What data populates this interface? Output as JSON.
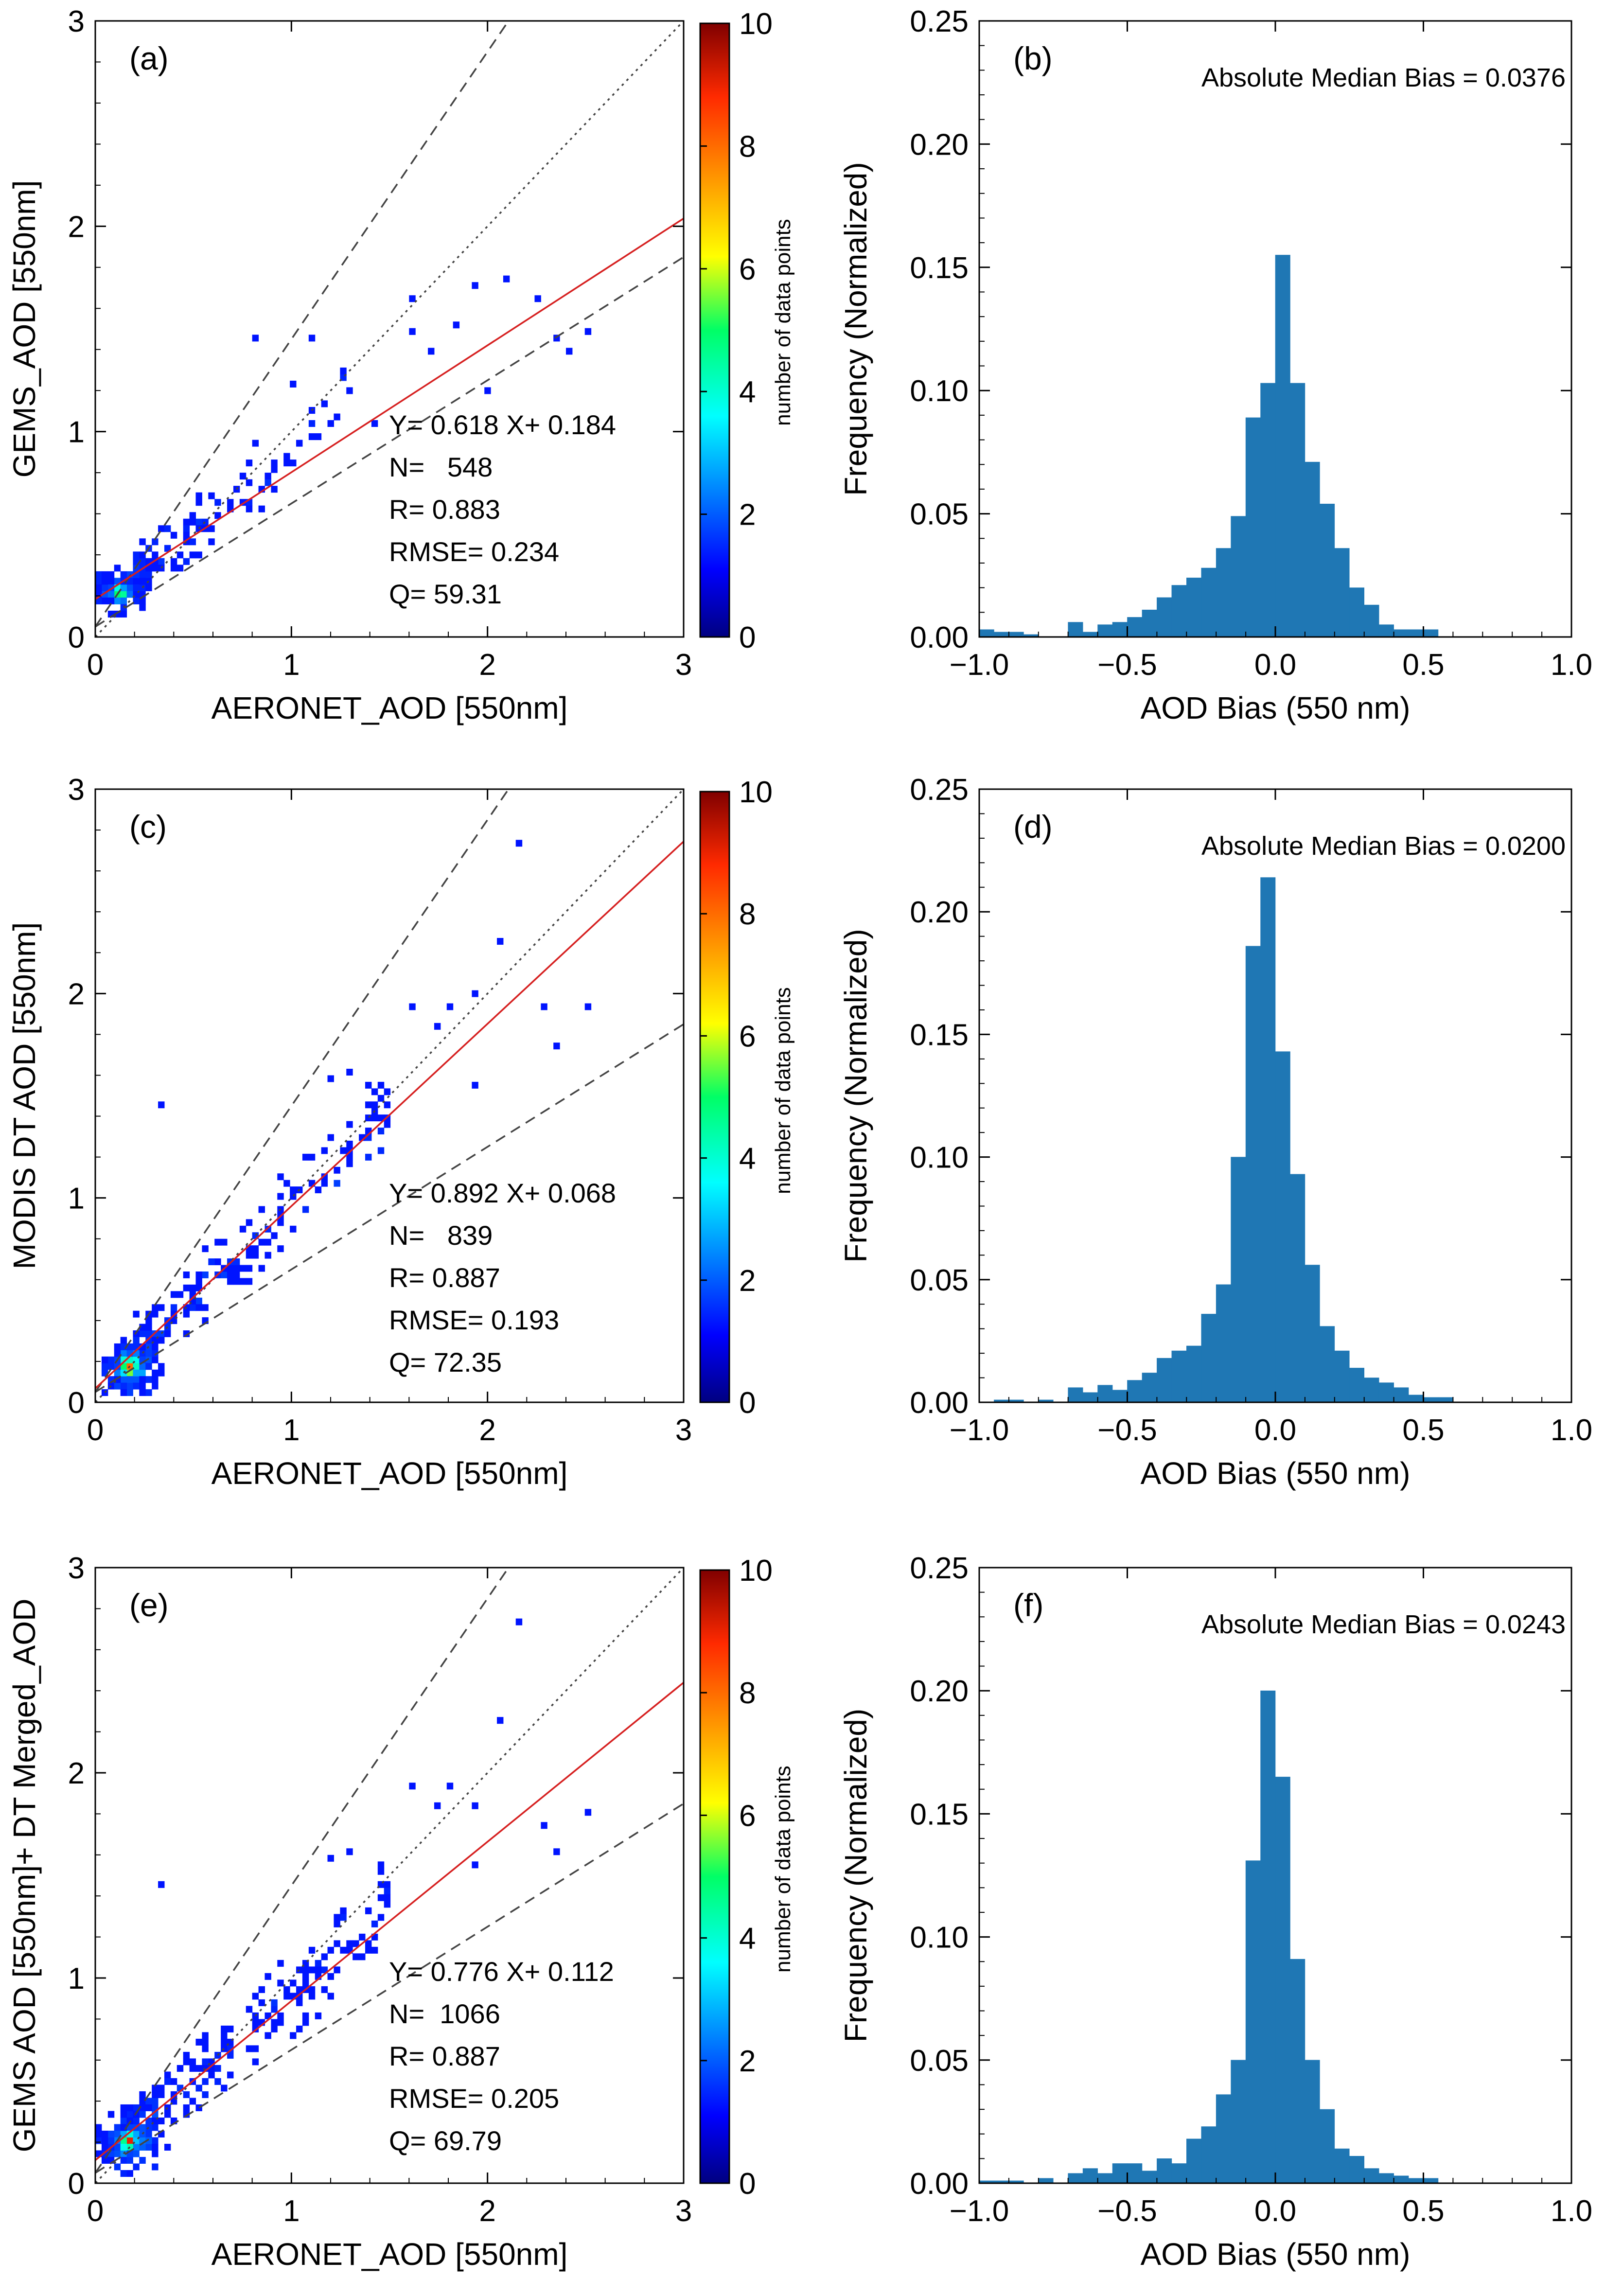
{
  "chart_data": [
    {
      "type": "heatmap",
      "panel_label": "(a)",
      "title": "",
      "xlabel": "AERONET_AOD [550nm]",
      "ylabel": "GEMS_AOD [550nm]",
      "xlim": [
        0,
        3
      ],
      "ylim": [
        0,
        3
      ],
      "xticks": [
        "0",
        "1",
        "2",
        "3"
      ],
      "yticks": [
        "0",
        "1",
        "2",
        "3"
      ],
      "reference_lines": {
        "one_to_one": [
          0,
          3
        ],
        "envelope_upper": "1.4x + 0.05",
        "envelope_lower": "0.6x + 0.05"
      },
      "fit": {
        "slope": 0.618,
        "intercept": 0.184
      },
      "stats": [
        "Y= 0.618 X+ 0.184",
        "N=   548",
        "R= 0.883",
        "RMSE= 0.234",
        "Q= 59.31"
      ],
      "colorbar": {
        "label": "number of data points",
        "range": [
          0,
          10
        ],
        "ticks": [
          "0",
          "2",
          "4",
          "6",
          "8",
          "10"
        ]
      },
      "density_cluster": {
        "center": [
          0.12,
          0.22
        ],
        "spread": 0.09,
        "count": 150,
        "peak": 5
      },
      "tail": {
        "count": 110,
        "x_range": [
          0.2,
          1.3
        ],
        "slope": 0.75,
        "offset": 0.15,
        "noise": 0.2
      },
      "outliers": [
        [
          1.1,
          1.45
        ],
        [
          1.28,
          1.2
        ],
        [
          1.42,
          1.05
        ],
        [
          1.6,
          1.65
        ],
        [
          1.62,
          1.5
        ],
        [
          1.7,
          1.4
        ],
        [
          1.85,
          1.52
        ],
        [
          1.95,
          1.7
        ],
        [
          2.0,
          1.2
        ],
        [
          2.08,
          1.75
        ],
        [
          2.25,
          1.65
        ],
        [
          2.35,
          1.45
        ],
        [
          2.42,
          1.38
        ],
        [
          2.52,
          1.5
        ],
        [
          0.8,
          1.44
        ],
        [
          1.0,
          1.22
        ]
      ]
    },
    {
      "type": "bar",
      "panel_label": "(b)",
      "title": "",
      "xlabel": "AOD Bias (550 nm)",
      "ylabel": "Frequency (Normalized)",
      "xlim": [
        -1.0,
        1.0
      ],
      "ylim": [
        0,
        0.25
      ],
      "xticks": [
        "−1.0",
        "−0.5",
        "0.0",
        "0.5",
        "1.0"
      ],
      "yticks": [
        "0.00",
        "0.05",
        "0.10",
        "0.15",
        "0.20",
        "0.25"
      ],
      "annotation": "Absolute Median Bias = 0.0376",
      "bin_start": -1.0,
      "bin_width": 0.05,
      "values": [
        0.003,
        0.002,
        0.002,
        0.001,
        0.0,
        0.0,
        0.006,
        0.002,
        0.005,
        0.006,
        0.008,
        0.011,
        0.016,
        0.021,
        0.024,
        0.028,
        0.036,
        0.049,
        0.089,
        0.103,
        0.155,
        0.103,
        0.071,
        0.054,
        0.036,
        0.02,
        0.013,
        0.005,
        0.003,
        0.003,
        0.003,
        0.0,
        0.0,
        0.0,
        0.0,
        0.0,
        0.0,
        0.0,
        0.0,
        0.0
      ],
      "color": "#1f77b4"
    },
    {
      "type": "heatmap",
      "panel_label": "(c)",
      "title": "",
      "xlabel": "AERONET_AOD [550nm]",
      "ylabel": "MODIS DT AOD [550nm]",
      "xlim": [
        0,
        3
      ],
      "ylim": [
        0,
        3
      ],
      "xticks": [
        "0",
        "1",
        "2",
        "3"
      ],
      "yticks": [
        "0",
        "1",
        "2",
        "3"
      ],
      "reference_lines": {
        "one_to_one": [
          0,
          3
        ],
        "envelope_upper": "1.4x + 0.05",
        "envelope_lower": "0.6x + 0.05"
      },
      "fit": {
        "slope": 0.892,
        "intercept": 0.068
      },
      "stats": [
        "Y= 0.892 X+ 0.068",
        "N=   839",
        "R= 0.887",
        "RMSE= 0.193",
        "Q= 72.35"
      ],
      "colorbar": {
        "label": "number of data points",
        "range": [
          0,
          10
        ],
        "ticks": [
          "0",
          "2",
          "4",
          "6",
          "8",
          "10"
        ]
      },
      "density_cluster": {
        "center": [
          0.18,
          0.17
        ],
        "spread": 0.1,
        "count": 230,
        "peak": 8
      },
      "tail": {
        "count": 170,
        "x_range": [
          0.2,
          1.5
        ],
        "slope": 0.9,
        "offset": 0.07,
        "noise": 0.22
      },
      "outliers": [
        [
          0.32,
          1.45
        ],
        [
          1.3,
          1.6
        ],
        [
          1.6,
          1.95
        ],
        [
          1.75,
          1.85
        ],
        [
          1.8,
          1.95
        ],
        [
          1.92,
          2.0
        ],
        [
          1.95,
          1.55
        ],
        [
          2.05,
          2.25
        ],
        [
          2.15,
          2.75
        ],
        [
          2.3,
          1.95
        ],
        [
          2.35,
          1.75
        ],
        [
          2.5,
          1.95
        ],
        [
          1.45,
          1.55
        ],
        [
          1.2,
          1.58
        ]
      ]
    },
    {
      "type": "bar",
      "panel_label": "(d)",
      "title": "",
      "xlabel": "AOD Bias (550 nm)",
      "ylabel": "Frequency (Normalized)",
      "xlim": [
        -1.0,
        1.0
      ],
      "ylim": [
        0,
        0.25
      ],
      "xticks": [
        "−1.0",
        "−0.5",
        "0.0",
        "0.5",
        "1.0"
      ],
      "yticks": [
        "0.00",
        "0.05",
        "0.10",
        "0.15",
        "0.20",
        "0.25"
      ],
      "annotation": "Absolute Median Bias = 0.0200",
      "bin_start": -1.0,
      "bin_width": 0.05,
      "values": [
        0.0,
        0.001,
        0.001,
        0.0,
        0.001,
        0.0,
        0.006,
        0.004,
        0.007,
        0.005,
        0.009,
        0.012,
        0.018,
        0.021,
        0.023,
        0.036,
        0.048,
        0.1,
        0.186,
        0.214,
        0.143,
        0.093,
        0.056,
        0.031,
        0.021,
        0.014,
        0.01,
        0.008,
        0.006,
        0.003,
        0.002,
        0.002,
        0.0,
        0.0,
        0.0,
        0.0,
        0.0,
        0.0,
        0.0,
        0.0
      ],
      "color": "#1f77b4"
    },
    {
      "type": "heatmap",
      "panel_label": "(e)",
      "title": "",
      "xlabel": "AERONET_AOD [550nm]",
      "ylabel": "GEMS AOD [550nm]+ DT Merged_AOD",
      "xlim": [
        0,
        3
      ],
      "ylim": [
        0,
        3
      ],
      "xticks": [
        "0",
        "1",
        "2",
        "3"
      ],
      "yticks": [
        "0",
        "1",
        "2",
        "3"
      ],
      "reference_lines": {
        "one_to_one": [
          0,
          3
        ],
        "envelope_upper": "1.4x + 0.05",
        "envelope_lower": "0.6x + 0.05"
      },
      "fit": {
        "slope": 0.776,
        "intercept": 0.112
      },
      "stats": [
        "Y= 0.776 X+ 0.112",
        "N=  1066",
        "R= 0.887",
        "RMSE= 0.205",
        "Q= 69.79"
      ],
      "colorbar": {
        "label": "number of data points",
        "range": [
          0,
          10
        ],
        "ticks": [
          "0",
          "2",
          "4",
          "6",
          "8",
          "10"
        ]
      },
      "density_cluster": {
        "center": [
          0.17,
          0.2
        ],
        "spread": 0.1,
        "count": 280,
        "peak": 9
      },
      "tail": {
        "count": 200,
        "x_range": [
          0.2,
          1.5
        ],
        "slope": 0.82,
        "offset": 0.1,
        "noise": 0.22
      },
      "outliers": [
        [
          0.32,
          1.45
        ],
        [
          1.3,
          1.6
        ],
        [
          1.6,
          1.95
        ],
        [
          1.75,
          1.85
        ],
        [
          1.8,
          1.95
        ],
        [
          1.92,
          1.85
        ],
        [
          1.95,
          1.55
        ],
        [
          2.05,
          2.25
        ],
        [
          2.15,
          2.75
        ],
        [
          2.3,
          1.75
        ],
        [
          2.35,
          1.6
        ],
        [
          2.5,
          1.8
        ],
        [
          1.45,
          1.55
        ],
        [
          1.2,
          1.58
        ]
      ]
    },
    {
      "type": "bar",
      "panel_label": "(f)",
      "title": "",
      "xlabel": "AOD Bias (550 nm)",
      "ylabel": "Frequency (Normalized)",
      "xlim": [
        -1.0,
        1.0
      ],
      "ylim": [
        0,
        0.25
      ],
      "xticks": [
        "−1.0",
        "−0.5",
        "0.0",
        "0.5",
        "1.0"
      ],
      "yticks": [
        "0.00",
        "0.05",
        "0.10",
        "0.15",
        "0.20",
        "0.25"
      ],
      "annotation": "Absolute Median Bias = 0.0243",
      "bin_start": -1.0,
      "bin_width": 0.05,
      "values": [
        0.001,
        0.001,
        0.001,
        0.0,
        0.002,
        0.0,
        0.004,
        0.006,
        0.004,
        0.008,
        0.008,
        0.005,
        0.01,
        0.008,
        0.018,
        0.023,
        0.036,
        0.05,
        0.131,
        0.2,
        0.165,
        0.091,
        0.05,
        0.03,
        0.014,
        0.011,
        0.006,
        0.004,
        0.003,
        0.002,
        0.002,
        0.0,
        0.0,
        0.0,
        0.0,
        0.0,
        0.0,
        0.0,
        0.0,
        0.0
      ],
      "color": "#1f77b4"
    }
  ]
}
